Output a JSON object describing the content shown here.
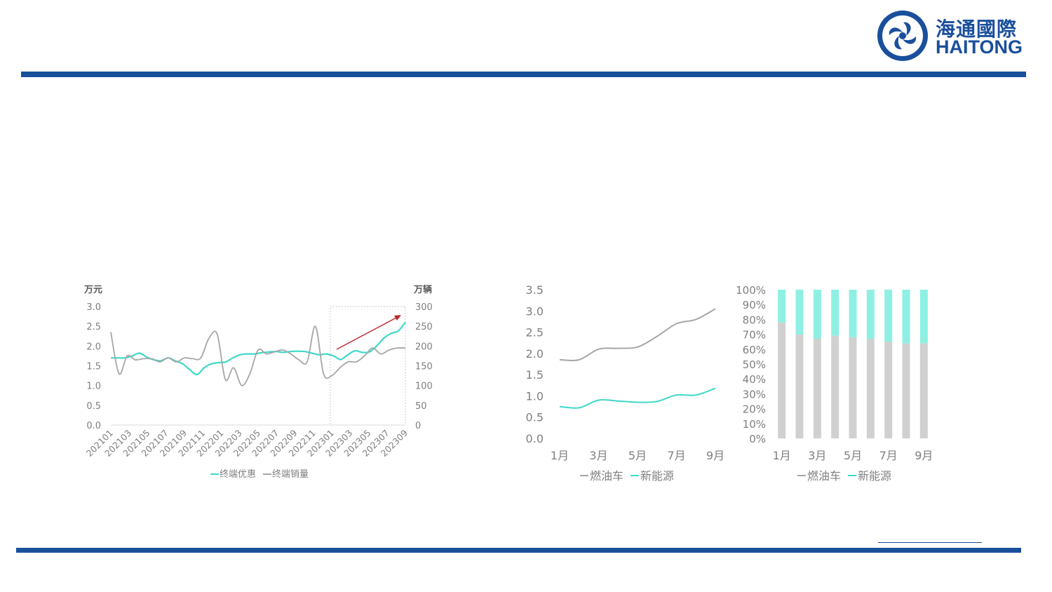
{
  "logo": {
    "cn": "海通國際",
    "en": "HAITONG"
  },
  "colors": {
    "brand": "#1a4f9c",
    "teal": "#3fd8c8",
    "gray": "#a6a6a6",
    "arrow": "#c0282d",
    "bar_gray": "#d0d0d0",
    "bar_teal": "#8ef0e3"
  },
  "chart_data": [
    {
      "type": "line",
      "y_left_unit": "万元",
      "y_right_unit": "万辆",
      "ylim_left": [
        0,
        3.0
      ],
      "ylim_right": [
        0,
        300
      ],
      "yticks_left": [
        "0.0",
        "0.5",
        "1.0",
        "1.5",
        "2.0",
        "2.5",
        "3.0"
      ],
      "yticks_right": [
        "0",
        "50",
        "100",
        "150",
        "200",
        "250",
        "300"
      ],
      "x_ticks": [
        "202101",
        "202103",
        "202105",
        "202107",
        "202109",
        "202111",
        "202201",
        "202203",
        "202205",
        "202207",
        "202209",
        "202211",
        "202301",
        "202303",
        "202305",
        "202307",
        "202309"
      ],
      "series": [
        {
          "name": "终端优惠",
          "axis": "left",
          "values": [
            1.7,
            1.7,
            1.7,
            1.75,
            1.82,
            1.72,
            1.65,
            1.63,
            1.7,
            1.62,
            1.55,
            1.4,
            1.28,
            1.45,
            1.55,
            1.58,
            1.6,
            1.7,
            1.78,
            1.8,
            1.8,
            1.83,
            1.85,
            1.86,
            1.84,
            1.86,
            1.87,
            1.86,
            1.82,
            1.78,
            1.8,
            1.75,
            1.66,
            1.78,
            1.88,
            1.84,
            1.85,
            2.0,
            2.2,
            2.32,
            2.38,
            2.6
          ]
        },
        {
          "name": "终端销量",
          "axis": "right",
          "values": [
            235,
            130,
            175,
            165,
            168,
            168,
            160,
            170,
            160,
            170,
            168,
            170,
            220,
            230,
            115,
            145,
            100,
            130,
            190,
            180,
            185,
            190,
            180,
            165,
            160,
            250,
            130,
            125,
            145,
            160,
            160,
            175,
            195,
            180,
            190,
            195,
            195
          ]
        }
      ],
      "annotation": "trend-arrow"
    },
    {
      "type": "line",
      "ylim": [
        0,
        3.5
      ],
      "yticks": [
        "0.0",
        "0.5",
        "1.0",
        "1.5",
        "2.0",
        "2.5",
        "3.0",
        "3.5"
      ],
      "x_ticks": [
        "1月",
        "3月",
        "5月",
        "7月",
        "9月"
      ],
      "x": [
        1,
        2,
        3,
        4,
        5,
        6,
        7,
        8,
        9
      ],
      "series": [
        {
          "name": "燃油车",
          "values": [
            1.85,
            1.85,
            2.1,
            2.12,
            2.15,
            2.4,
            2.7,
            2.8,
            3.05
          ]
        },
        {
          "name": "新能源",
          "values": [
            0.75,
            0.72,
            0.9,
            0.88,
            0.85,
            0.87,
            1.02,
            1.02,
            1.18
          ]
        }
      ]
    },
    {
      "type": "bar",
      "stacked": true,
      "ylim": [
        0,
        100
      ],
      "yticks": [
        "0%",
        "10%",
        "20%",
        "30%",
        "40%",
        "50%",
        "60%",
        "70%",
        "80%",
        "90%",
        "100%"
      ],
      "x_ticks": [
        "1月",
        "3月",
        "5月",
        "7月",
        "9月"
      ],
      "categories": [
        1,
        2,
        3,
        4,
        5,
        6,
        7,
        8,
        9
      ],
      "series": [
        {
          "name": "燃油车",
          "values": [
            78,
            70,
            67,
            69,
            68,
            67,
            65,
            64,
            64
          ]
        },
        {
          "name": "新能源",
          "values": [
            22,
            30,
            33,
            31,
            32,
            33,
            35,
            36,
            36
          ]
        }
      ]
    }
  ]
}
